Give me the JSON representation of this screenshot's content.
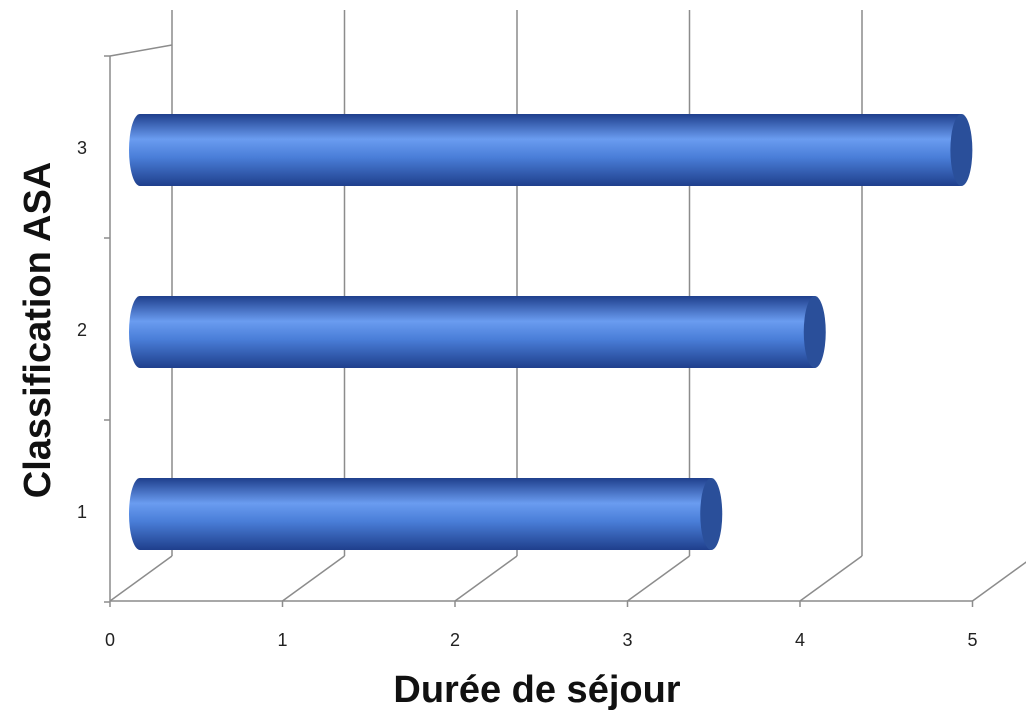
{
  "chart_data": {
    "type": "bar",
    "orientation": "horizontal",
    "style": "3d-cylinder",
    "categories": [
      "1",
      "2",
      "3"
    ],
    "values": [
      3.3,
      3.9,
      4.75
    ],
    "xlabel": "Durée de séjour",
    "ylabel": "Classification ASA",
    "xlim": [
      0,
      5
    ],
    "x_ticks": [
      "0",
      "1",
      "2",
      "3",
      "4",
      "5"
    ],
    "y_ticks": [
      "1",
      "2",
      "3"
    ],
    "grid": true,
    "legend": "none",
    "colors": {
      "bar": "#4a7ed8",
      "bar_light": "#6a9cf0",
      "bar_dark": "#1f3f8c",
      "cap": "#2a4f9a",
      "grid": "#8c8c8c",
      "text": "#222222"
    }
  }
}
